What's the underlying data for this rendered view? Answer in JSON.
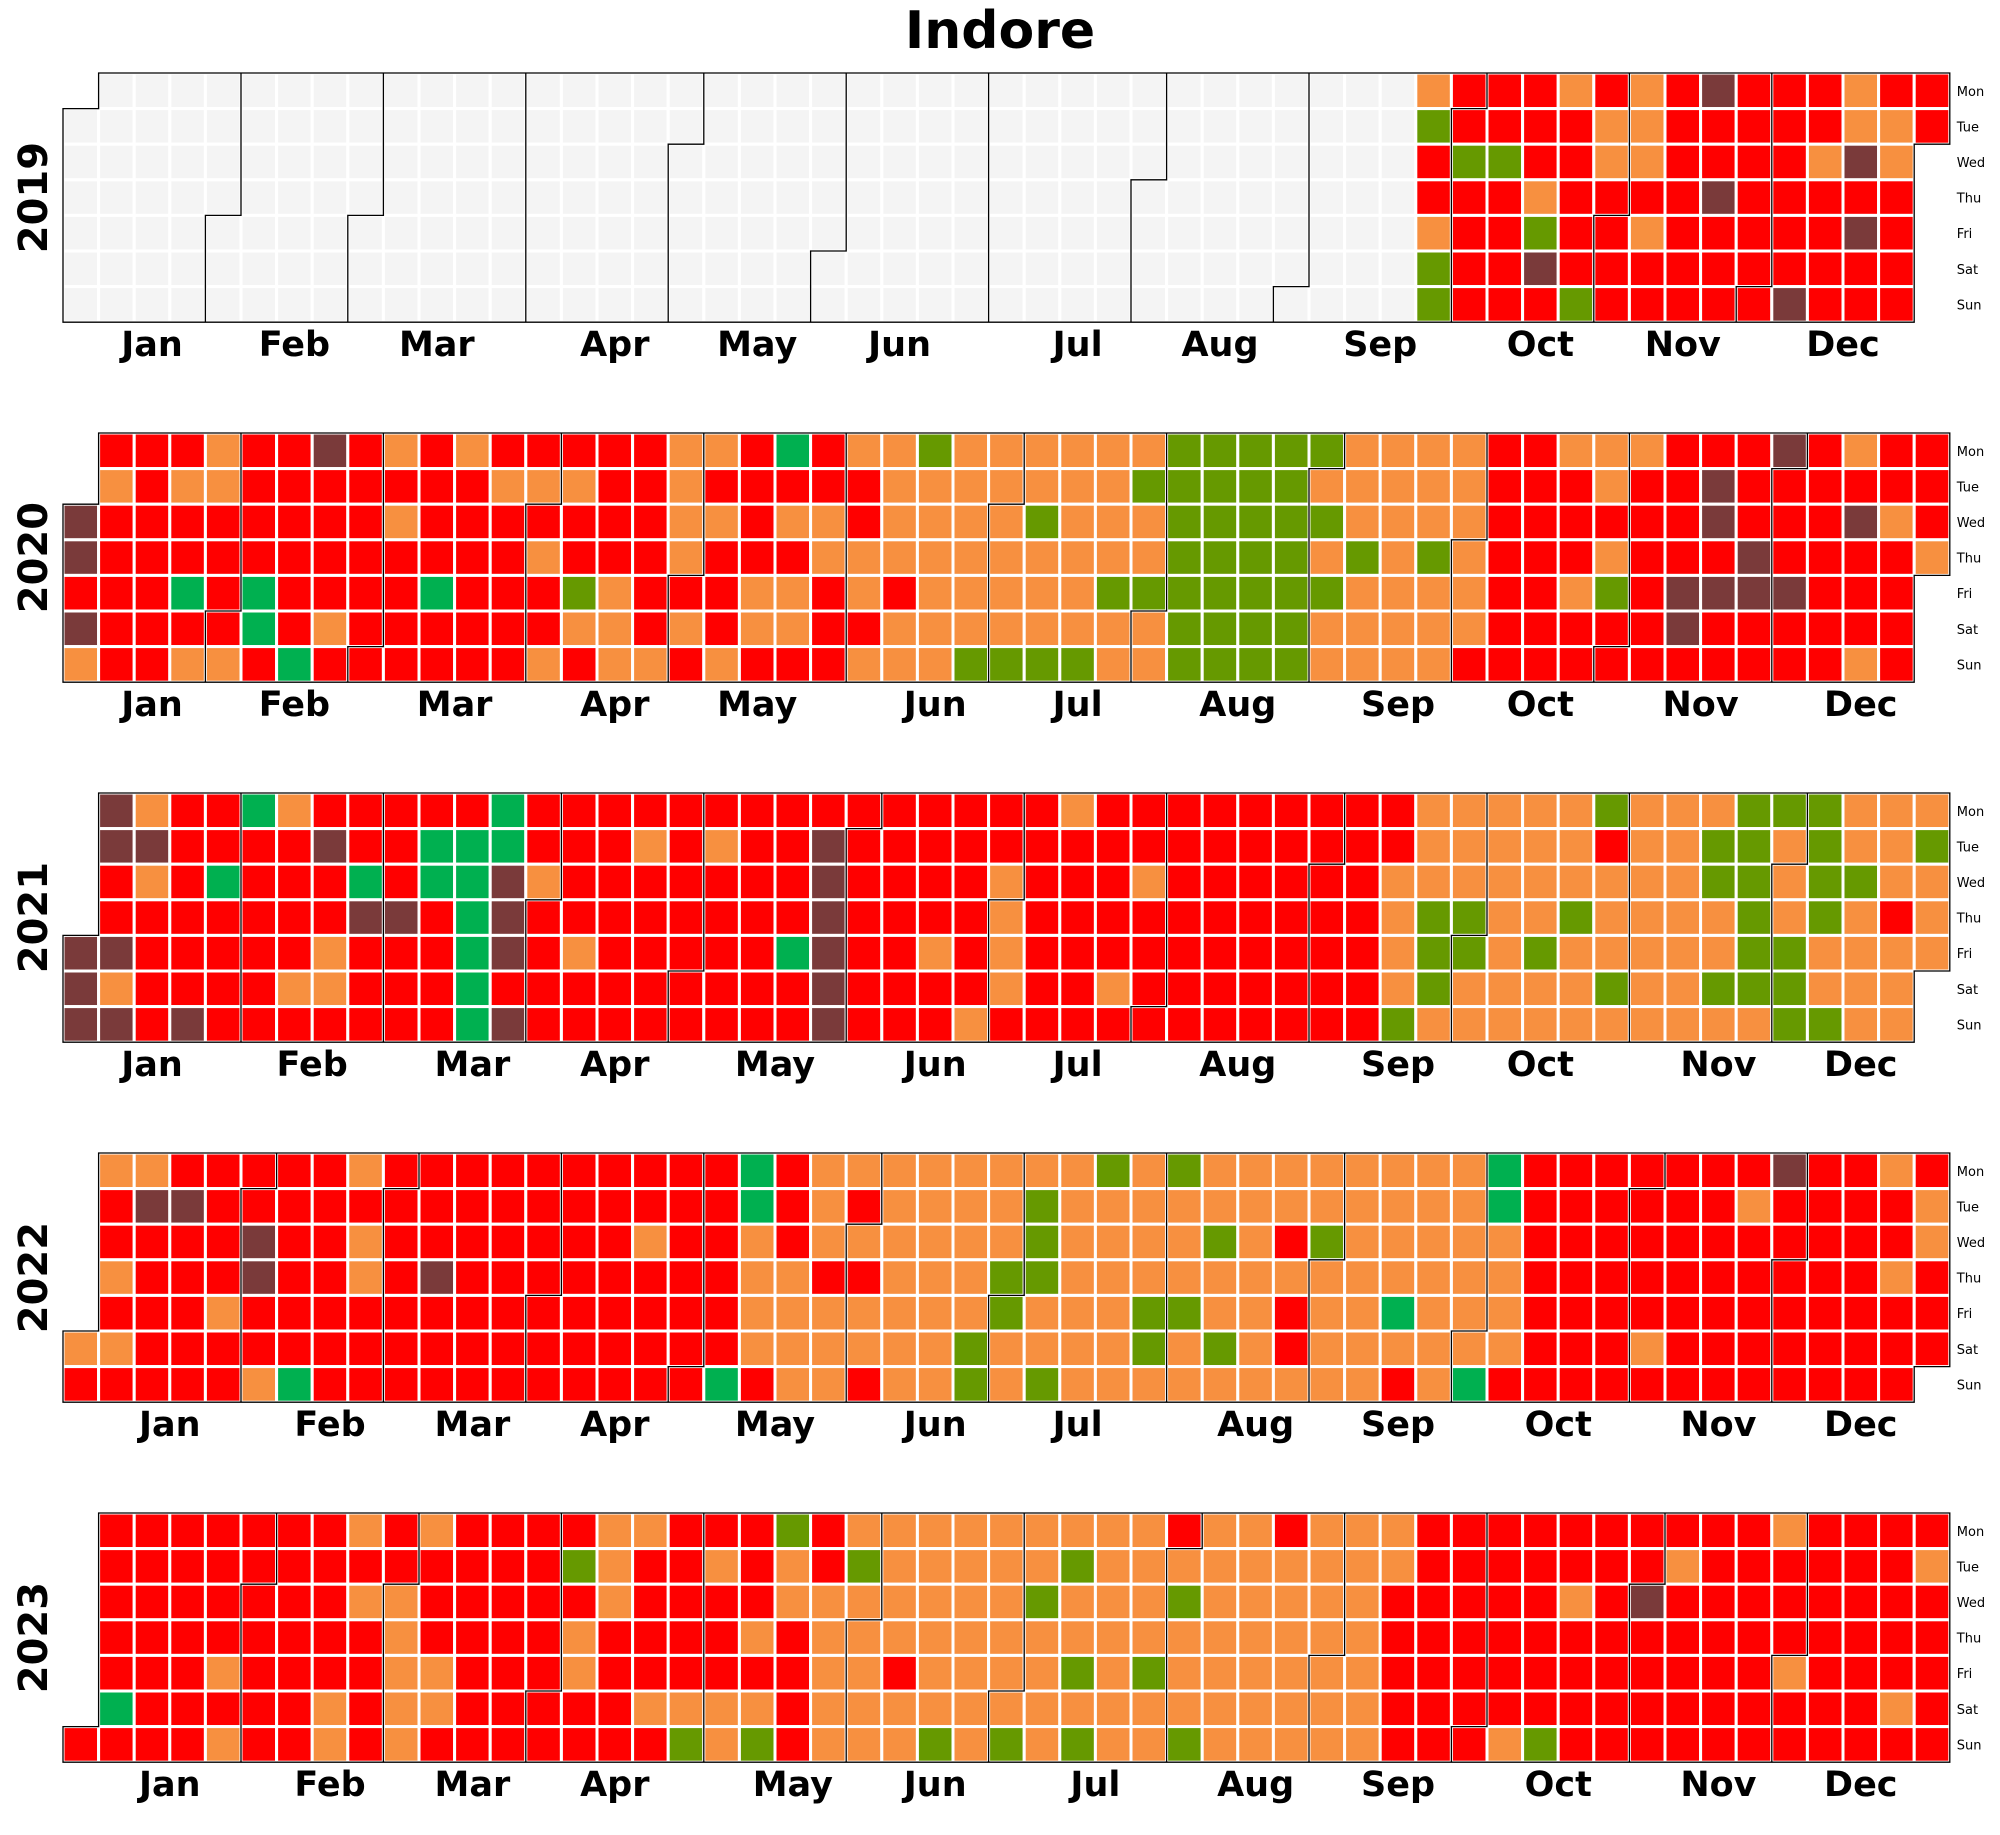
{
  "chart_data": {
    "type": "heatmap",
    "title": "Indore",
    "years": [
      "2019",
      "2020",
      "2021",
      "2022",
      "2023"
    ],
    "months": [
      "Jan",
      "Feb",
      "Mar",
      "Apr",
      "May",
      "Jun",
      "Jul",
      "Aug",
      "Sep",
      "Oct",
      "Nov",
      "Dec"
    ],
    "weekdays": [
      "Mon",
      "Tue",
      "Wed",
      "Thu",
      "Fri",
      "Sat",
      "Sun"
    ],
    "colors": {
      "none": "#f4f4f4",
      "good": "#00b050",
      "satisfactory": "#669900",
      "moderate": "#f79040",
      "poor": "#ff0000",
      "very_poor": "#7a3a3a"
    },
    "data_start": {
      "2019": "2019-09-23"
    },
    "cells": {
      "2019": "MSPPMSSPPSPPPPPPSPPPPPPPMSVPMPPPPPSPMMPPPPMMMPMPPPPPPPPPVPPVPPPPPPPPPPPPPPPPVPPMPPPPMMVPVPPPMMPPPPPPGP",
      "2020": "VVPVMPMPPPPPPPPPPPPPMPPGPMMMPPPPMPPPPGGPPPPPPPGVPPPPMPPPPPPPPMPMPPPPPPPPGPPMPPPPPPPMPPPPPPMPMPPMPMPPSMPPPPPMMMPPPPPPMMMMMPMPMPMPPPMPPPPMMPGPMPMMPPPMMPPPMPPMMPMMMMMPMMSMMMMMMMMMMMMSMMMMMMSMMSMMMSMMMMMMSMMMMSMMMSMMSMMSSSSSSSSSSSSSSSSSSSSSSSSSSSSSMSMSMMMMMSMMMMMMMMMMMMMSMMMMMMMMMPPPPPPPPPPPPPPPMPPPMPPMMPMSPPMPPPPPPPPPPVVPPVVPVPPPPPVVPPVPPPVPPPPPPPPPMPVPPPMPPMPPPPPPPMPPVVVMVVPPPPPVPP",
      "2021": "VVVVVPPVMVMVMPPPPPPPPPPVPPGPPPPGPPPPPPMPPPPMPPVPPMMPPPGVPPPPPPVPPPPGGPPPPPGGGGGGGGVVVPVPPMPPPPPPPPMPPPPPPPPPPMPPPPPPPPPPPPPMPPPPPPPPPPPPPPPPGPPPVVVVVVPPPPPPPPPPPPPPPPPPMPPPPPPPPMPPMMMMPPPPPPPPMPPPPPPPPPPPMPPPMPPPPPPPPPPPPPPPPPPPPPPPPPPPPPPPPPPPPPPPPPPPPPPPPMMMMSMMMSSSMMMMSSMMMMMMMMMMMMMSMMMMMSMMMSPMMMSMMMMMMMMMMMMMMMMSSMMSMSSSSSSMSMMMSSSSSSSMMSMMSMMMMMMMPMMMMSMMMMMPPPPMMMPPPPPPPPPPPPPPPPPPPPPPPPPPPPPVVVVVVVPPPPPPPPPPPPPVVVVVVVPPPPPPVPPPPPPVVPPPPPPPPPPPMPPVVPVPVVPPVVPPVPPVV",
      "2022": "MPMPPMPMPMVPPPPPPVPPPPPPPPPMPPPPVVPPMPPPPPPGPPPPPPPMPMMPPPPPPPPPPPPPVPPPPPPPPPPPPPPPPPPPPPPPPPPPPPPPPPPPPPPPPMPPPPPPPPPPPPPPPPPGGGMMMMPPPPMMMMMMMPMMMMPMPMMPMMMMMMMMMMMMMMMMMMMSSMMMSSMMMSSSMMSMMMMMMMSMMMMMMMMMMSSMSMMMSMMMMSMMSMMMMMMMMMMPMPPMMMSMMMMMMMMMMMMMMMGMPMMMMMMMMMMMMMGGGMMMMPPPPPPPPPPPPPPPPPPPPPPPPPPPMPPPPPPPPPPPPPPPPMPPPPPVPPPPPPPPPPPPPPPPPPPPMPPMPPPPMMPPPPPPPPPPPPPPPPPPPPPPPMPPP",
      "2023": "PPPPPPGPPPPPPPPPPPPPPPPPPPMPMPPPPPPPPPPPPPPPPPPPMMMPMPPPPPPMMMMMMPPPMMPPPPPPPPPPPPPPPPPPPPPPPSPMMPPMMMPPPPMPPPPMPPPPPPMSPMPPPMMPPPMPMSSMMPPPPPPMMMMMMSMMMMMMMMMPMMMMMMMMSMMMMMMMMMMMMMSMMSMMMMMSMMSMSMMMMMMMMMMMSMMPMSMMMSMMMMMMMMMMMMMMPMMMMMMMMMMMMMMMMMMMMMMPPPPPPPPPPPPPPPPPPPPPPPPPMPPPPPPSPPMPPPPPPPPPPPPPVPPPPPMPPPPPPPPPPPPPPPPPPPMPPPMPPPPPPPPPPPPPPPPPPPPPMPPMPPPPPPPPPPPPPPPPPPPPPMPPPPPPPMPPPMMMMMMMMMMMMMMMMMMMMMMMPPPPPPPPPPPPPPPPPPPPPPPPPPPPPPPPPPPPPPPPP"
    }
  }
}
